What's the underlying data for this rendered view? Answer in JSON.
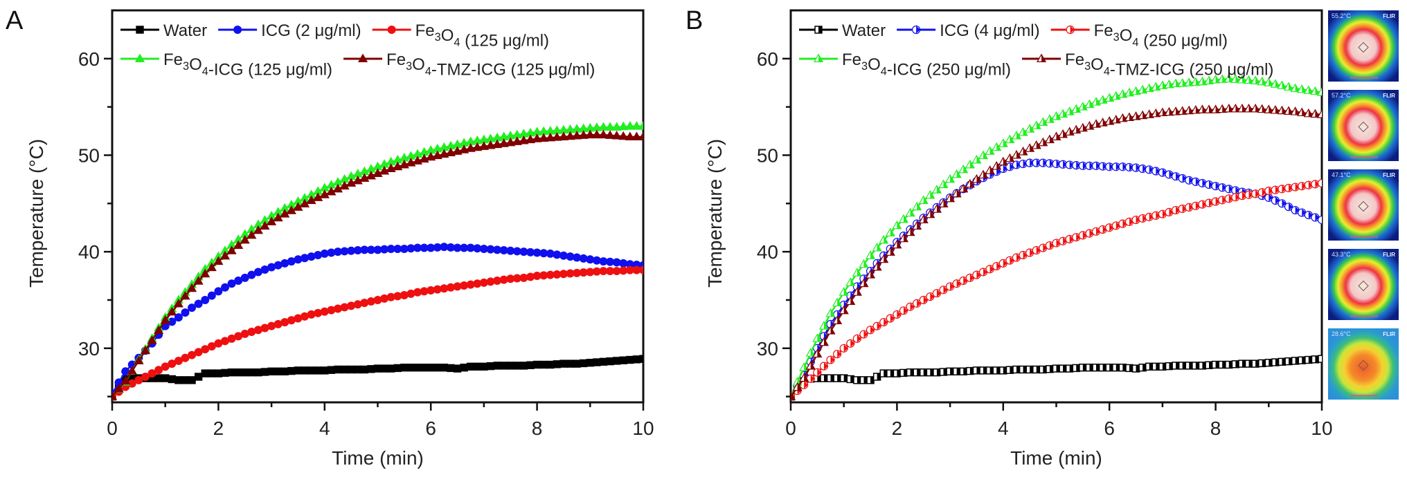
{
  "figure": {
    "panels": [
      {
        "label": "A"
      },
      {
        "label": "B"
      }
    ],
    "thermal_images": [
      {
        "temperature": "55.2°C",
        "brand": "FLIR",
        "palette": "hot"
      },
      {
        "temperature": "57.2°C",
        "brand": "FLIR",
        "palette": "hot"
      },
      {
        "temperature": "47.1°C",
        "brand": "FLIR",
        "palette": "hot"
      },
      {
        "temperature": "43.3°C",
        "brand": "FLIR",
        "palette": "hot"
      },
      {
        "temperature": "28.6°C",
        "brand": "FLIR",
        "palette": "cool"
      }
    ]
  },
  "chart_data": [
    {
      "panel": "A",
      "type": "line",
      "title": "",
      "xlabel": "Time (min)",
      "ylabel": "Temperature (°C)",
      "xlim": [
        0,
        10
      ],
      "ylim": [
        24.4,
        65
      ],
      "xticks": [
        0,
        2,
        4,
        6,
        8,
        10
      ],
      "yticks": [
        30,
        40,
        50,
        60
      ],
      "grid": false,
      "legend_position": "top-left",
      "x": [
        0,
        0.25,
        0.5,
        0.75,
        1,
        1.25,
        1.5,
        1.75,
        2,
        2.25,
        2.5,
        2.75,
        3,
        3.25,
        3.5,
        3.75,
        4,
        4.25,
        4.5,
        4.75,
        5,
        5.25,
        5.5,
        5.75,
        6,
        6.25,
        6.5,
        6.75,
        7,
        7.25,
        7.5,
        7.75,
        8,
        8.25,
        8.5,
        8.75,
        9,
        9.25,
        9.5,
        9.75,
        10
      ],
      "series": [
        {
          "name": "Water",
          "color": "#000000",
          "marker": "square",
          "fill": "solid",
          "values": [
            25.0,
            26.8,
            26.9,
            26.9,
            26.9,
            26.7,
            26.7,
            27.4,
            27.4,
            27.5,
            27.5,
            27.5,
            27.6,
            27.6,
            27.7,
            27.7,
            27.7,
            27.8,
            27.8,
            27.8,
            27.9,
            27.9,
            28.0,
            28.0,
            28.0,
            28.0,
            27.9,
            28.1,
            28.1,
            28.2,
            28.2,
            28.2,
            28.3,
            28.3,
            28.4,
            28.4,
            28.5,
            28.6,
            28.7,
            28.8,
            28.9
          ]
        },
        {
          "name": "ICG (2 μg/ml)",
          "color": "#1010ee",
          "marker": "circle",
          "fill": "solid",
          "values": [
            25.3,
            27.6,
            29.0,
            30.5,
            32.3,
            33.2,
            34.2,
            35.0,
            35.9,
            36.7,
            37.3,
            37.9,
            38.4,
            38.8,
            39.2,
            39.5,
            39.8,
            40.0,
            40.1,
            40.2,
            40.2,
            40.3,
            40.3,
            40.4,
            40.4,
            40.5,
            40.4,
            40.4,
            40.3,
            40.2,
            40.1,
            40.0,
            39.9,
            39.8,
            39.6,
            39.4,
            39.2,
            39.0,
            38.9,
            38.7,
            38.6
          ]
        },
        {
          "name": "Fe3O4 (125 μg/ml)",
          "color": "#ee1010",
          "marker": "circle",
          "fill": "solid",
          "values": [
            25.0,
            26.0,
            26.7,
            27.4,
            28.1,
            28.7,
            29.3,
            29.9,
            30.5,
            31.0,
            31.5,
            31.9,
            32.3,
            32.7,
            33.1,
            33.5,
            33.8,
            34.1,
            34.4,
            34.7,
            35.0,
            35.3,
            35.5,
            35.8,
            36.0,
            36.2,
            36.4,
            36.6,
            36.8,
            37.0,
            37.2,
            37.3,
            37.5,
            37.6,
            37.7,
            37.8,
            37.9,
            38.0,
            38.0,
            38.1,
            38.1
          ]
        },
        {
          "name": "Fe3O4-ICG (125 μg/ml)",
          "color": "#22ee22",
          "marker": "triangle",
          "fill": "solid",
          "values": [
            25.0,
            26.5,
            28.8,
            31.0,
            33.2,
            35.0,
            36.6,
            38.2,
            39.5,
            40.7,
            41.8,
            42.8,
            43.7,
            44.5,
            45.2,
            45.9,
            46.6,
            47.2,
            47.8,
            48.3,
            48.8,
            49.3,
            49.7,
            50.1,
            50.5,
            50.8,
            51.1,
            51.4,
            51.6,
            51.8,
            52.0,
            52.2,
            52.4,
            52.5,
            52.6,
            52.7,
            52.8,
            52.9,
            52.9,
            53.0,
            53.0
          ]
        },
        {
          "name": "Fe3O4-TMZ-ICG (125 μg/ml)",
          "color": "#800000",
          "marker": "triangle",
          "fill": "solid",
          "values": [
            25.0,
            26.6,
            28.7,
            30.8,
            32.9,
            34.6,
            36.2,
            37.7,
            39.0,
            40.1,
            41.2,
            42.2,
            43.1,
            43.9,
            44.6,
            45.3,
            45.9,
            46.5,
            47.1,
            47.6,
            48.1,
            48.6,
            49.0,
            49.4,
            49.8,
            50.1,
            50.4,
            50.7,
            50.9,
            51.1,
            51.3,
            51.5,
            51.7,
            51.8,
            51.9,
            52.0,
            52.1,
            52.1,
            52.0,
            51.9,
            51.9
          ]
        }
      ]
    },
    {
      "panel": "B",
      "type": "line",
      "title": "",
      "xlabel": "Time (min)",
      "ylabel": "Temperature (°C)",
      "xlim": [
        0,
        10
      ],
      "ylim": [
        24.4,
        65
      ],
      "xticks": [
        0,
        2,
        4,
        6,
        8,
        10
      ],
      "yticks": [
        30,
        40,
        50,
        60
      ],
      "grid": false,
      "legend_position": "top-left",
      "x": [
        0,
        0.25,
        0.5,
        0.75,
        1,
        1.25,
        1.5,
        1.75,
        2,
        2.25,
        2.5,
        2.75,
        3,
        3.25,
        3.5,
        3.75,
        4,
        4.25,
        4.5,
        4.75,
        5,
        5.25,
        5.5,
        5.75,
        6,
        6.25,
        6.5,
        6.75,
        7,
        7.25,
        7.5,
        7.75,
        8,
        8.25,
        8.5,
        8.75,
        9,
        9.25,
        9.5,
        9.75,
        10
      ],
      "series": [
        {
          "name": "Water",
          "color": "#000000",
          "marker": "square",
          "fill": "half",
          "values": [
            25.0,
            26.8,
            26.9,
            26.9,
            26.9,
            26.7,
            26.7,
            27.4,
            27.4,
            27.5,
            27.5,
            27.5,
            27.6,
            27.6,
            27.7,
            27.7,
            27.7,
            27.8,
            27.8,
            27.8,
            27.9,
            27.9,
            28.0,
            28.0,
            28.0,
            28.0,
            27.9,
            28.1,
            28.1,
            28.2,
            28.2,
            28.2,
            28.3,
            28.3,
            28.4,
            28.4,
            28.5,
            28.6,
            28.7,
            28.8,
            28.9
          ]
        },
        {
          "name": "ICG (4 μg/ml)",
          "color": "#1010ee",
          "marker": "triangle-right",
          "fill": "half",
          "values": [
            25.0,
            27.2,
            30.0,
            32.5,
            34.5,
            36.4,
            38.0,
            39.6,
            41.0,
            42.3,
            43.5,
            44.6,
            45.6,
            46.5,
            47.3,
            48.0,
            48.6,
            49.0,
            49.2,
            49.2,
            49.1,
            49.0,
            48.9,
            48.9,
            48.8,
            48.8,
            48.7,
            48.5,
            48.2,
            47.8,
            47.4,
            47.1,
            46.8,
            46.5,
            46.2,
            46.0,
            45.6,
            45.0,
            44.3,
            43.8,
            43.3
          ]
        },
        {
          "name": "Fe3O4 (250 μg/ml)",
          "color": "#ee1010",
          "marker": "triangle-right",
          "fill": "half",
          "values": [
            25.0,
            26.2,
            27.5,
            28.8,
            30.0,
            31.0,
            31.9,
            32.7,
            33.5,
            34.3,
            35.0,
            35.7,
            36.4,
            37.0,
            37.6,
            38.2,
            38.8,
            39.4,
            39.9,
            40.4,
            40.9,
            41.3,
            41.7,
            42.1,
            42.5,
            42.9,
            43.3,
            43.6,
            43.9,
            44.3,
            44.6,
            44.9,
            45.2,
            45.5,
            45.8,
            46.0,
            46.3,
            46.5,
            46.7,
            46.9,
            47.1
          ]
        },
        {
          "name": "Fe3O4-ICG (250 μg/ml)",
          "color": "#22ee22",
          "marker": "triangle",
          "fill": "half",
          "values": [
            25.0,
            28.0,
            31.0,
            33.6,
            35.8,
            37.8,
            39.6,
            41.2,
            42.7,
            44.0,
            45.3,
            46.4,
            47.5,
            48.5,
            49.5,
            50.4,
            51.2,
            52.0,
            52.7,
            53.4,
            54.0,
            54.5,
            55.0,
            55.5,
            55.9,
            56.3,
            56.6,
            56.9,
            57.2,
            57.4,
            57.5,
            57.6,
            57.8,
            57.9,
            57.8,
            57.7,
            57.5,
            57.2,
            56.9,
            56.7,
            56.5
          ]
        },
        {
          "name": "Fe3O4-TMZ-ICG (250 μg/ml)",
          "color": "#800000",
          "marker": "triangle",
          "fill": "half",
          "values": [
            25.0,
            26.9,
            29.4,
            31.8,
            33.9,
            35.8,
            37.6,
            39.2,
            40.7,
            42.0,
            43.3,
            44.4,
            45.5,
            46.5,
            47.5,
            48.4,
            49.3,
            50.0,
            50.7,
            51.3,
            51.9,
            52.4,
            52.8,
            53.2,
            53.5,
            53.8,
            54.0,
            54.2,
            54.4,
            54.5,
            54.6,
            54.7,
            54.7,
            54.8,
            54.8,
            54.8,
            54.7,
            54.6,
            54.5,
            54.3,
            54.2
          ]
        }
      ]
    }
  ]
}
